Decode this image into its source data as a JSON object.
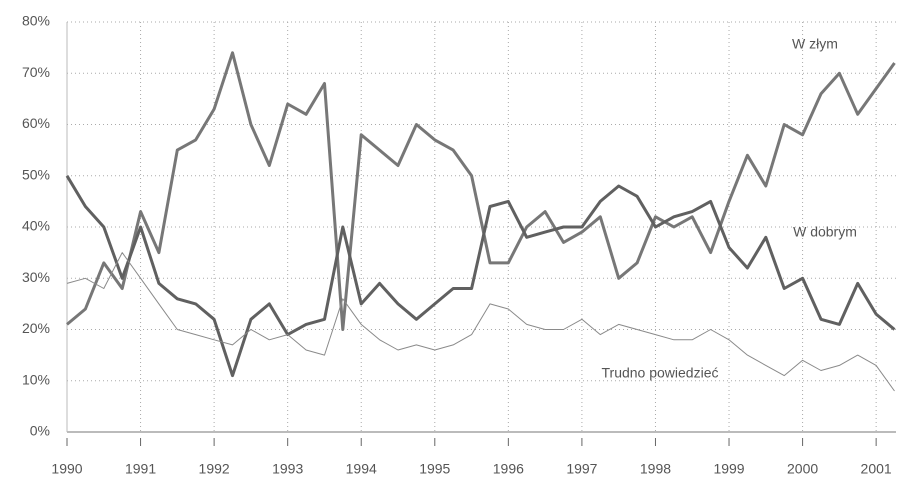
{
  "chart_data": {
    "type": "line",
    "x": [
      1990,
      1990.25,
      1990.5,
      1990.75,
      1991,
      1991.25,
      1991.5,
      1991.75,
      1992,
      1992.25,
      1992.5,
      1992.75,
      1993,
      1993.25,
      1993.5,
      1993.75,
      1994,
      1994.25,
      1994.5,
      1994.75,
      1995,
      1995.25,
      1995.5,
      1995.75,
      1996,
      1996.25,
      1996.5,
      1996.75,
      1997,
      1997.25,
      1997.5,
      1997.75,
      1998,
      1998.25,
      1998.5,
      1998.75,
      1999,
      1999.25,
      1999.5,
      1999.75,
      2000,
      2000.25,
      2000.5,
      2000.75,
      2001,
      2001.25
    ],
    "series": [
      {
        "name": "W złym",
        "color": "#777777",
        "width": 3,
        "values": [
          21,
          24,
          33,
          28,
          43,
          35,
          55,
          57,
          63,
          74,
          60,
          52,
          64,
          62,
          68,
          20,
          58,
          55,
          52,
          60,
          57,
          55,
          50,
          33,
          33,
          40,
          43,
          37,
          39,
          42,
          30,
          33,
          42,
          40,
          42,
          35,
          45,
          54,
          48,
          60,
          58,
          66,
          70,
          62,
          67,
          72
        ]
      },
      {
        "name": "W dobrym",
        "color": "#606060",
        "width": 3,
        "values": [
          50,
          44,
          40,
          30,
          40,
          29,
          26,
          25,
          22,
          11,
          22,
          25,
          19,
          21,
          22,
          40,
          25,
          29,
          25,
          22,
          25,
          28,
          28,
          44,
          45,
          38,
          39,
          40,
          40,
          45,
          48,
          46,
          40,
          42,
          43,
          45,
          36,
          32,
          38,
          28,
          30,
          22,
          21,
          29,
          23,
          20
        ]
      },
      {
        "name": "Trudno powiedzieć",
        "color": "#8a8a8a",
        "width": 1,
        "values": [
          29,
          30,
          28,
          35,
          30,
          25,
          20,
          19,
          18,
          17,
          20,
          18,
          19,
          16,
          15,
          26,
          21,
          18,
          16,
          17,
          16,
          17,
          19,
          25,
          24,
          21,
          20,
          20,
          22,
          19,
          21,
          20,
          19,
          18,
          18,
          20,
          18,
          15,
          13,
          11,
          14,
          12,
          13,
          15,
          13,
          8
        ]
      }
    ],
    "xlim": [
      1990,
      2001.27
    ],
    "xticks": [
      1990,
      1991,
      1992,
      1993,
      1994,
      1995,
      1996,
      1997,
      1998,
      1999,
      2000,
      2001
    ],
    "ylim": [
      0,
      80
    ],
    "yticks": [
      {
        "value": 0,
        "label": "0%"
      },
      {
        "value": 10,
        "label": "10%"
      },
      {
        "value": 20,
        "label": "20%"
      },
      {
        "value": 30,
        "label": "30%"
      },
      {
        "value": 40,
        "label": "40%"
      },
      {
        "value": 50,
        "label": "50%"
      },
      {
        "value": 60,
        "label": "60%"
      },
      {
        "value": 70,
        "label": "70%"
      },
      {
        "value": 80,
        "label": "80%"
      }
    ],
    "grid": true
  }
}
